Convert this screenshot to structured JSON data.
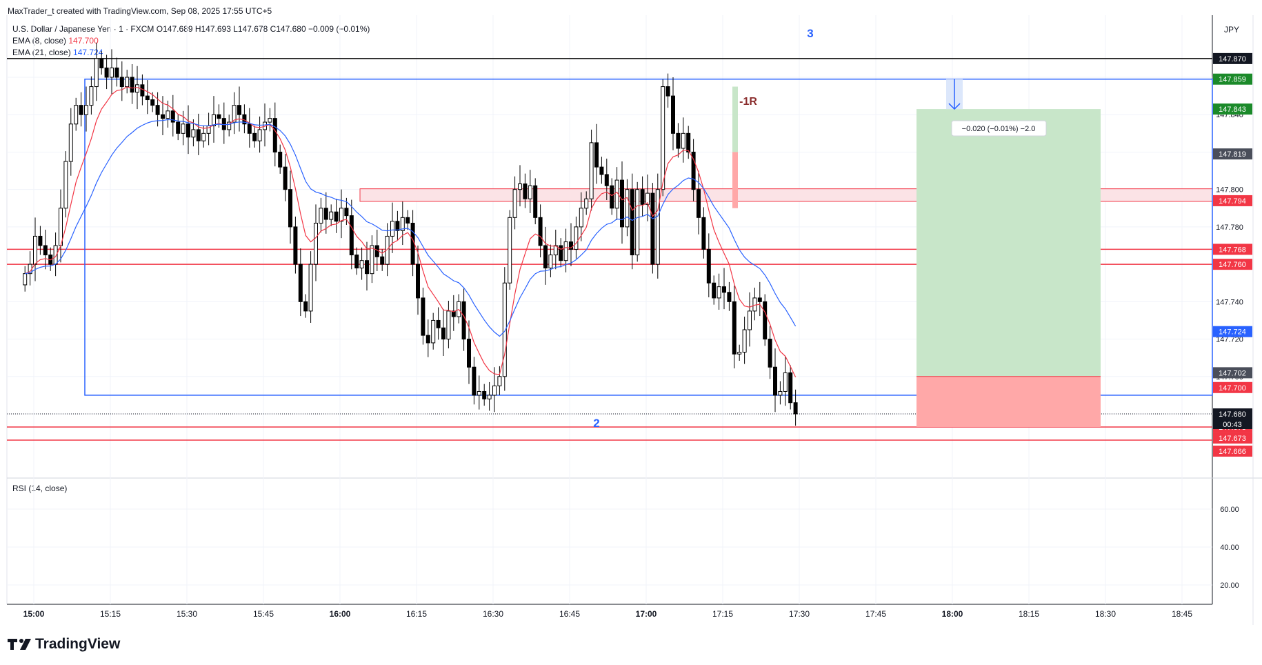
{
  "credit": "MaxTrader_t created with TradingView.com, Sep 08, 2025 17:55 UTC+5",
  "legend": {
    "symbol": "U.S. Dollar / Japanese Yen · 1 · FXCM",
    "ohlc": "O147.689  H147.693  L147.678  C147.680  −0.009 (−0.01%)",
    "ema8_label": "EMA (8, close)",
    "ema8_value": "147.700",
    "ema21_label": "EMA (21, close)",
    "ema21_value": "147.724"
  },
  "currency": "JPY",
  "rsi_label": "RSI (14, close)",
  "brand": "TradingView",
  "colors": {
    "up": "#ffffff",
    "down": "#000000",
    "ema8": "#f23645",
    "ema21": "#2962ff",
    "box": "#2962ff",
    "hline": "#f23645",
    "target_fill": "#c8e6c9",
    "stop_fill": "#ffa8a8"
  },
  "chart_data": {
    "type": "candlestick",
    "interval": "1m",
    "x_ticks": [
      "15:00",
      "15:15",
      "15:30",
      "15:45",
      "16:00",
      "16:15",
      "16:30",
      "16:45",
      "17:00",
      "17:15",
      "17:30",
      "17:45",
      "18:00",
      "18:15",
      "18:30",
      "18:45"
    ],
    "y_ticks": [
      "147.860",
      "147.840",
      "147.820",
      "147.800",
      "147.780",
      "147.760",
      "147.740",
      "147.720",
      "147.700",
      "147.680"
    ],
    "ylim": [
      147.652,
      147.888
    ],
    "close_series": [
      147.755,
      147.76,
      147.775,
      147.77,
      147.765,
      147.76,
      147.77,
      147.79,
      147.815,
      147.835,
      147.845,
      147.84,
      147.845,
      147.855,
      147.87,
      147.865,
      147.86,
      147.865,
      147.86,
      147.855,
      147.86,
      147.852,
      147.856,
      147.85,
      147.848,
      147.845,
      147.84,
      147.838,
      147.842,
      147.836,
      147.83,
      147.835,
      147.828,
      147.832,
      147.826,
      147.83,
      147.834,
      147.84,
      147.838,
      147.832,
      147.836,
      147.845,
      147.84,
      147.835,
      147.83,
      147.826,
      147.832,
      147.836,
      147.838,
      147.82,
      147.812,
      147.8,
      147.78,
      147.76,
      147.74,
      147.735,
      147.76,
      147.782,
      147.79,
      147.784,
      147.788,
      147.783,
      147.79,
      147.786,
      147.765,
      147.758,
      147.762,
      147.755,
      147.77,
      147.764,
      147.76,
      147.775,
      147.783,
      147.778,
      147.785,
      147.782,
      147.76,
      147.742,
      147.722,
      147.718,
      147.73,
      147.726,
      147.72,
      147.735,
      147.732,
      147.74,
      147.72,
      147.705,
      147.69,
      147.692,
      147.688,
      147.69,
      147.695,
      147.7,
      147.75,
      147.785,
      147.8,
      147.803,
      147.795,
      147.802,
      147.785,
      147.77,
      147.758,
      147.765,
      147.77,
      147.762,
      147.772,
      147.768,
      147.78,
      147.79,
      147.795,
      147.825,
      147.812,
      147.808,
      147.802,
      147.79,
      147.805,
      147.78,
      147.8,
      147.765,
      147.8,
      147.792,
      147.798,
      147.76,
      147.8,
      147.855,
      147.85,
      147.83,
      147.822,
      147.83,
      147.82,
      147.8,
      147.785,
      147.768,
      147.75,
      147.742,
      147.748,
      147.745,
      147.74,
      147.712,
      147.713,
      147.725,
      147.735,
      147.742,
      147.74,
      147.72,
      147.705,
      147.69,
      147.692,
      147.702,
      147.686,
      147.68
    ],
    "indicators": [
      {
        "name": "EMA (8, close)",
        "last": 147.7
      },
      {
        "name": "EMA (21, close)",
        "last": 147.724
      }
    ],
    "annotations": {
      "wave_labels": [
        "2",
        "3"
      ],
      "r_label": "-1R",
      "measure_label": "−0.020 (−0.01%) −2.0",
      "position_entry": 147.7,
      "position_target": 147.843,
      "position_stop": 147.673,
      "box_top": 147.859,
      "box_bottom": 147.69,
      "zone": [
        147.794,
        147.8
      ]
    },
    "price_labels": [
      {
        "value": "147.870",
        "style": "black"
      },
      {
        "value": "147.859",
        "style": "green"
      },
      {
        "value": "147.843",
        "style": "green"
      },
      {
        "value": "147.819",
        "style": "gray"
      },
      {
        "value": "147.794",
        "style": "red"
      },
      {
        "value": "147.768",
        "style": "red"
      },
      {
        "value": "147.760",
        "style": "red"
      },
      {
        "value": "147.724",
        "style": "blue"
      },
      {
        "value": "147.702",
        "style": "gray"
      },
      {
        "value": "147.700",
        "style": "red"
      },
      {
        "value": "147.680",
        "style": "black"
      },
      {
        "value": "147.673",
        "style": "red"
      },
      {
        "value": "147.673",
        "style": "red"
      },
      {
        "value": "147.666",
        "style": "red"
      }
    ],
    "countdown": "00:43",
    "rsi": {
      "ticks": [
        "60.00",
        "40.00",
        "20.00"
      ]
    }
  }
}
